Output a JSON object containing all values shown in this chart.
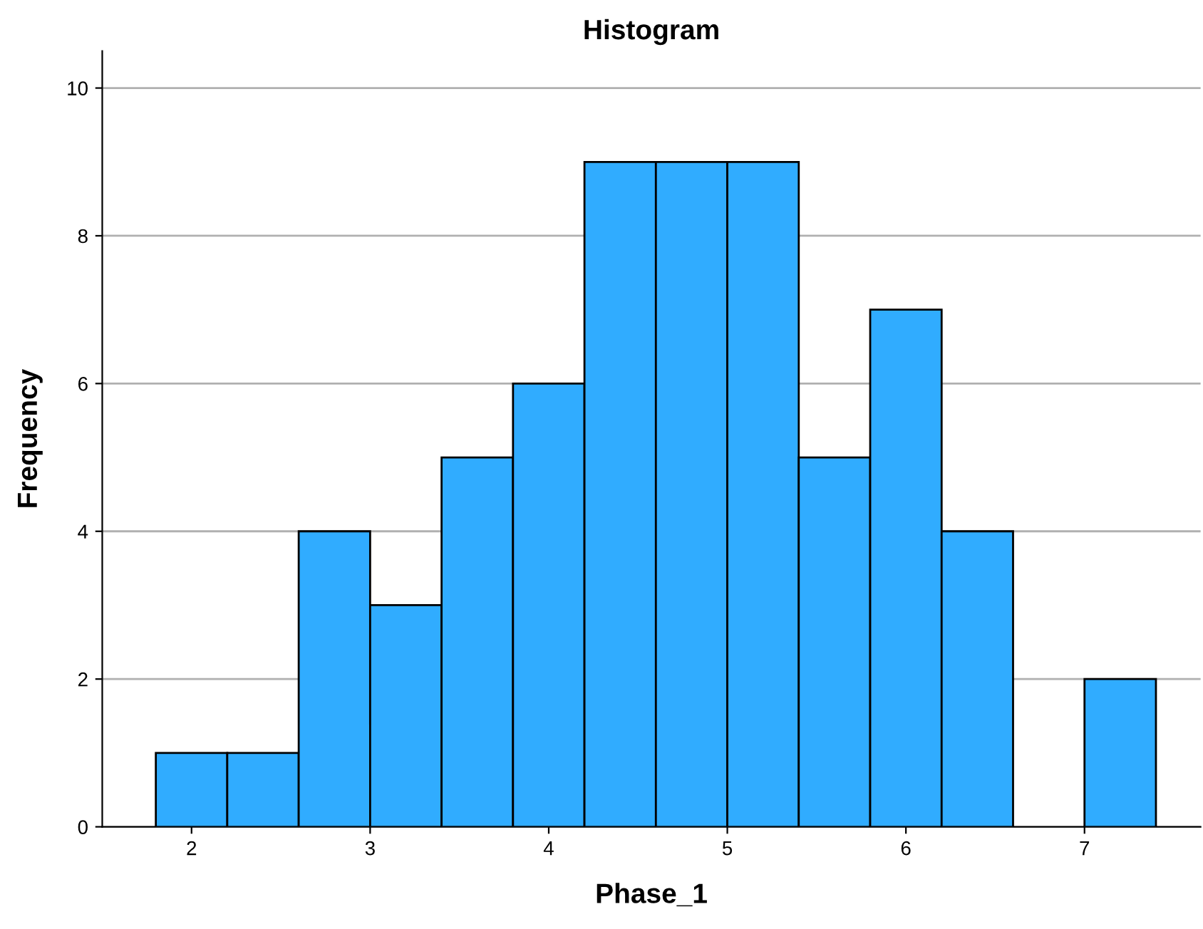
{
  "chart_data": {
    "type": "histogram",
    "title": "Histogram",
    "xlabel": "Phase_1",
    "ylabel": "Frequency",
    "bins": [
      1.8,
      2.2,
      2.6,
      3.0,
      3.4,
      3.8,
      4.2,
      4.6,
      5.0,
      5.4,
      5.8,
      6.2,
      6.6,
      7.0,
      7.4
    ],
    "values": [
      1,
      1,
      4,
      3,
      5,
      6,
      9,
      9,
      9,
      5,
      7,
      4,
      0,
      2
    ],
    "color": "#30acff",
    "xlim": [
      1.5,
      7.65
    ],
    "xticks": [
      2,
      3,
      4,
      5,
      6,
      7
    ],
    "ylim": [
      0,
      10.5
    ],
    "yticks": [
      0,
      2,
      4,
      6,
      8,
      10
    ],
    "grid": "y"
  }
}
